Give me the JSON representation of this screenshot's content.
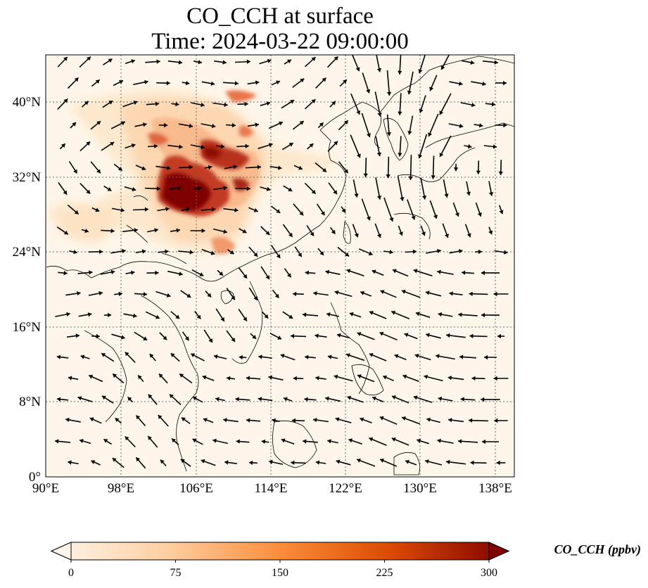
{
  "title": {
    "line1": "CO_CCH at surface",
    "line2": "Time: 2024-03-22 09:00:00"
  },
  "map": {
    "lon_ticks": [
      "90°E",
      "98°E",
      "106°E",
      "114°E",
      "122°E",
      "130°E",
      "138°E"
    ],
    "lat_ticks": [
      "40°N",
      "32°N",
      "24°N",
      "16°N",
      "8°N",
      "0°"
    ],
    "colors": {
      "background": "#fef6ea",
      "low": "#fde4c2",
      "mid": "#f3a06a",
      "high": "#d44a2a",
      "max": "#800000"
    }
  },
  "colorbar": {
    "label": "CO_CCH (ppbv)",
    "ticks": [
      "0",
      "75",
      "150",
      "225",
      "300"
    ],
    "extend": "both",
    "colormap": [
      "#fff5eb",
      "#fdd0a2",
      "#fd8d3c",
      "#d94801",
      "#7f0000"
    ]
  }
}
